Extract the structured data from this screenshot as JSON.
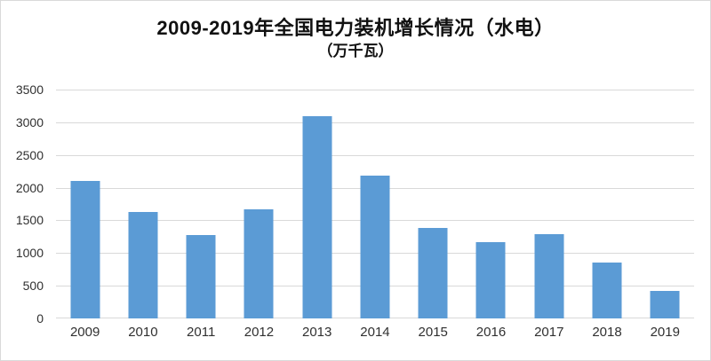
{
  "chart_data": {
    "type": "bar",
    "title": "2009-2019年全国电力装机增长情况（水电）",
    "subtitle": "（万千瓦）",
    "categories": [
      "2009",
      "2010",
      "2011",
      "2012",
      "2013",
      "2014",
      "2015",
      "2016",
      "2017",
      "2018",
      "2019"
    ],
    "values": [
      2110,
      1630,
      1280,
      1670,
      3100,
      2180,
      1380,
      1170,
      1290,
      850,
      420
    ],
    "xlabel": "",
    "ylabel": "",
    "ylim": [
      0,
      3500
    ],
    "yticks": [
      0,
      500,
      1000,
      1500,
      2000,
      2500,
      3000,
      3500
    ],
    "grid": true,
    "legend": "none",
    "bar_color": "#5B9BD5",
    "gridline_color": "#D9D9D9",
    "axis_label_color": "#303030",
    "title_color": "#111111",
    "background_color": "#FFFFFF"
  }
}
